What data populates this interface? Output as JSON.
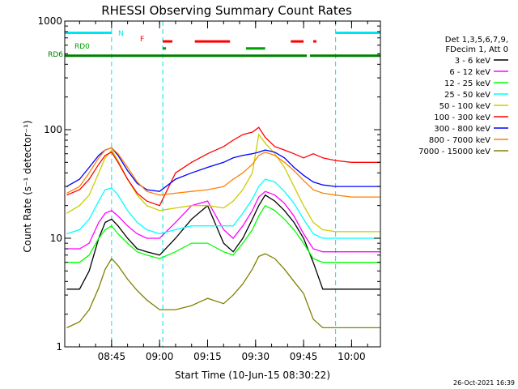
{
  "chart_data": {
    "type": "line",
    "title": "RHESSI Observing Summary Count Rates",
    "xlabel": "Start Time (10-Jun-15 08:30:22)",
    "ylabel": "Count Rate (s⁻¹ detector⁻¹)",
    "y_scale": "log",
    "ylim": [
      1,
      1000
    ],
    "xlim": [
      "08:30:22",
      "10:09:00"
    ],
    "x_ticks": [
      "08:45",
      "09:00",
      "09:15",
      "09:30",
      "09:45",
      "10:00"
    ],
    "y_ticks": [
      "1",
      "10",
      "100",
      "1000"
    ],
    "legend_header": [
      "Det 1,3,5,6,7,9,",
      "FDecim 1, Att 0"
    ],
    "legend_position": "right",
    "date_stamp": "26-Oct-2021 16:39",
    "flags": [
      {
        "label": "N",
        "color": "#00e5ee",
        "level": 780,
        "segments": [
          [
            "08:30:22",
            "08:45:00"
          ],
          [
            "09:55:00",
            "10:09:00"
          ]
        ]
      },
      {
        "label": "F",
        "color": "#ff0000",
        "level": 650,
        "segments": [
          [
            "09:01:00",
            "09:04:00"
          ],
          [
            "09:11:00",
            "09:22:00"
          ],
          [
            "09:41:00",
            "09:45:00"
          ],
          [
            "09:48:00",
            "09:49:00"
          ]
        ]
      },
      {
        "label": "RD0",
        "color": "#00a000",
        "level": 560,
        "segments": [
          [
            "09:01:00",
            "09:02:00"
          ],
          [
            "09:27:00",
            "09:33:00"
          ]
        ]
      },
      {
        "label": "RD6",
        "color": "#008000",
        "level": 480,
        "segments": [
          [
            "08:30:22",
            "09:01:00"
          ],
          [
            "09:01:00",
            "09:25:00"
          ],
          [
            "09:25:00",
            "09:46:00"
          ],
          [
            "09:47:00",
            "10:09:00"
          ]
        ]
      }
    ],
    "gaps": [
      "08:30:22",
      "08:45:00",
      "09:01:00",
      "09:55:00",
      "10:09:00"
    ],
    "x": [
      "08:31",
      "08:35",
      "08:38",
      "08:41",
      "08:43",
      "08:45",
      "08:47",
      "08:50",
      "08:53",
      "08:56",
      "09:00",
      "09:05",
      "09:10",
      "09:15",
      "09:20",
      "09:23",
      "09:26",
      "09:29",
      "09:31",
      "09:33",
      "09:36",
      "09:39",
      "09:42",
      "09:45",
      "09:48",
      "09:51",
      "09:55",
      "10:00",
      "10:05",
      "10:09"
    ],
    "series": [
      {
        "name": "3 - 6 keV",
        "color": "#000000",
        "values": [
          3.4,
          3.4,
          5,
          10,
          14,
          15,
          13,
          10,
          8,
          7.5,
          7,
          10,
          15,
          20,
          9,
          7.5,
          10,
          15,
          20,
          25,
          22,
          18,
          14,
          10,
          6,
          3.4,
          3.4,
          3.4,
          3.4,
          3.4
        ]
      },
      {
        "name": "6 - 12 keV",
        "color": "#ff00ff",
        "values": [
          8,
          8,
          9,
          14,
          17,
          18,
          16,
          13,
          11,
          10,
          10,
          14,
          20,
          22,
          12,
          10,
          13,
          18,
          24,
          27,
          25,
          21,
          16,
          11,
          8,
          7.5,
          7.5,
          7.5,
          7.5,
          7.5
        ]
      },
      {
        "name": "12 - 25 keV",
        "color": "#00ff00",
        "values": [
          6,
          6,
          7,
          10,
          12,
          13,
          11,
          9,
          7.5,
          7,
          6.5,
          7.5,
          9,
          9,
          7.5,
          7,
          9,
          12,
          16,
          20,
          18,
          15,
          12,
          9,
          6.5,
          6,
          6,
          6,
          6,
          6
        ]
      },
      {
        "name": "25 - 50 keV",
        "color": "#00ffff",
        "values": [
          11,
          12,
          15,
          22,
          28,
          29,
          25,
          18,
          14,
          12,
          11,
          12,
          13,
          13,
          13,
          13,
          17,
          23,
          30,
          35,
          33,
          27,
          21,
          15,
          11,
          10,
          10,
          10,
          10,
          10
        ]
      },
      {
        "name": "50 - 100 keV",
        "color": "#cccc00",
        "values": [
          17,
          20,
          25,
          40,
          55,
          65,
          52,
          35,
          25,
          20,
          18,
          19,
          20,
          20,
          19,
          22,
          28,
          40,
          90,
          75,
          60,
          45,
          30,
          20,
          14,
          12,
          11.5,
          11.5,
          11.5,
          11.5
        ]
      },
      {
        "name": "100 - 300 keV",
        "color": "#ff0000",
        "values": [
          25,
          28,
          35,
          48,
          58,
          62,
          50,
          35,
          26,
          22,
          20,
          40,
          50,
          60,
          70,
          80,
          90,
          95,
          105,
          85,
          70,
          65,
          60,
          55,
          60,
          55,
          52,
          50,
          50,
          50
        ]
      },
      {
        "name": "300 - 800 keV",
        "color": "#0000ff",
        "values": [
          30,
          35,
          45,
          58,
          65,
          68,
          58,
          42,
          32,
          28,
          27,
          35,
          40,
          45,
          50,
          55,
          58,
          60,
          62,
          65,
          62,
          55,
          45,
          38,
          33,
          31,
          30,
          30,
          30,
          30
        ]
      },
      {
        "name": "800 - 7000 keV",
        "color": "#ff8000",
        "values": [
          26,
          30,
          40,
          55,
          65,
          68,
          60,
          45,
          33,
          27,
          25,
          26,
          27,
          28,
          30,
          35,
          40,
          48,
          58,
          62,
          58,
          50,
          42,
          34,
          28,
          26,
          25,
          24,
          24,
          24
        ]
      },
      {
        "name": "7000 - 15000 keV",
        "color": "#808000",
        "values": [
          1.5,
          1.7,
          2.2,
          3.5,
          5.2,
          6.5,
          5.6,
          4.2,
          3.3,
          2.7,
          2.2,
          2.2,
          2.4,
          2.8,
          2.5,
          3.0,
          3.8,
          5.2,
          6.8,
          7.2,
          6.5,
          5.2,
          4.0,
          3.1,
          1.8,
          1.5,
          1.5,
          1.5,
          1.5,
          1.5
        ]
      }
    ]
  }
}
